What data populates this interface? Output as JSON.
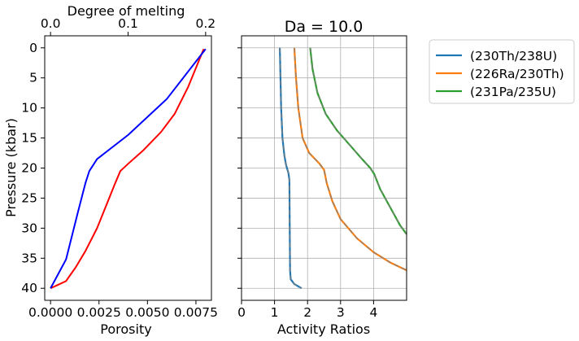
{
  "chart_data": [
    {
      "type": "line",
      "panel": "left",
      "xlabel": "Porosity",
      "xlabel_color": "#ff0000",
      "ylabel": "Pressure (kbar)",
      "top_xlabel": "Degree of melting",
      "top_xlabel_color": "#0000ff",
      "xlim": [
        -0.0003,
        0.0083
      ],
      "ylim": [
        42,
        -2
      ],
      "y_inverted": true,
      "top_xlim": [
        -0.0075,
        0.2075
      ],
      "x_ticks": [
        "0.0000",
        "0.0025",
        "0.0050",
        "0.0075"
      ],
      "x_tick_values": [
        0,
        0.0025,
        0.005,
        0.0075
      ],
      "top_ticks": [
        "0.0",
        "0.1",
        "0.2"
      ],
      "top_tick_values": [
        0,
        0.1,
        0.2
      ],
      "y_ticks": [
        "0",
        "5",
        "10",
        "15",
        "20",
        "25",
        "30",
        "35",
        "40"
      ],
      "y_tick_values": [
        0,
        5,
        10,
        15,
        20,
        25,
        30,
        35,
        40
      ],
      "series": [
        {
          "color": "#ff0000",
          "axis": "bottom",
          "points": [
            [
              0,
              40
            ],
            [
              0.0004,
              39.4
            ],
            [
              0.0008,
              38.8
            ],
            [
              0.0013,
              36.5
            ],
            [
              0.0018,
              33.8
            ],
            [
              0.0024,
              30.0
            ],
            [
              0.0029,
              26.0
            ],
            [
              0.0033,
              22.8
            ],
            [
              0.0036,
              20.5
            ],
            [
              0.004,
              19.3
            ],
            [
              0.0048,
              17.0
            ],
            [
              0.0057,
              14.0
            ],
            [
              0.0064,
              11.0
            ],
            [
              0.0071,
              6.5
            ],
            [
              0.0079,
              0.2
            ]
          ]
        },
        {
          "color": "#0000ff",
          "axis": "top",
          "points": [
            [
              0,
              40
            ],
            [
              0.02,
              35.2
            ],
            [
              0.035,
              27.5
            ],
            [
              0.045,
              22.5
            ],
            [
              0.05,
              20.5
            ],
            [
              0.06,
              18.5
            ],
            [
              0.1,
              14.5
            ],
            [
              0.15,
              8.5
            ],
            [
              0.2,
              0.2
            ]
          ]
        }
      ]
    },
    {
      "type": "line",
      "panel": "right",
      "title": "Da = 10.0",
      "xlabel": "Activity Ratios",
      "xlim": [
        0,
        5
      ],
      "ylim": [
        42,
        -2
      ],
      "y_inverted": true,
      "grid": true,
      "legend_position": "outside-right",
      "x_ticks": [
        "0",
        "1",
        "2",
        "3",
        "4"
      ],
      "x_tick_values": [
        0,
        1,
        2,
        3,
        4
      ],
      "series": [
        {
          "name": "(230Th/238U)",
          "color": "#1f77b4",
          "points": [
            [
              1.16,
              0
            ],
            [
              1.18,
              5
            ],
            [
              1.2,
              10
            ],
            [
              1.24,
              15
            ],
            [
              1.3,
              18
            ],
            [
              1.35,
              19.5
            ],
            [
              1.42,
              20.8
            ],
            [
              1.45,
              22
            ],
            [
              1.46,
              30
            ],
            [
              1.47,
              37
            ],
            [
              1.49,
              38.5
            ],
            [
              1.6,
              39.3
            ],
            [
              1.82,
              40
            ]
          ]
        },
        {
          "name": "(226Ra/230Th)",
          "color": "#ff7f0e",
          "points": [
            [
              1.6,
              0
            ],
            [
              1.65,
              5
            ],
            [
              1.72,
              10
            ],
            [
              1.85,
              15
            ],
            [
              2.05,
              17.5
            ],
            [
              2.35,
              19.2
            ],
            [
              2.5,
              20.3
            ],
            [
              2.58,
              22.5
            ],
            [
              2.75,
              25.5
            ],
            [
              3.0,
              28.5
            ],
            [
              3.5,
              31.7
            ],
            [
              4.0,
              34
            ],
            [
              4.5,
              35.7
            ],
            [
              5.0,
              37
            ]
          ]
        },
        {
          "name": "(231Pa/235U)",
          "color": "#2ca02c",
          "points": [
            [
              2.08,
              0
            ],
            [
              2.15,
              3.5
            ],
            [
              2.3,
              7.5
            ],
            [
              2.55,
              11
            ],
            [
              2.9,
              13.8
            ],
            [
              3.3,
              16.3
            ],
            [
              3.65,
              18.5
            ],
            [
              3.9,
              20
            ],
            [
              4.02,
              21
            ],
            [
              4.2,
              23.5
            ],
            [
              4.5,
              26.5
            ],
            [
              4.8,
              29.5
            ],
            [
              5.0,
              31
            ]
          ]
        }
      ]
    }
  ]
}
